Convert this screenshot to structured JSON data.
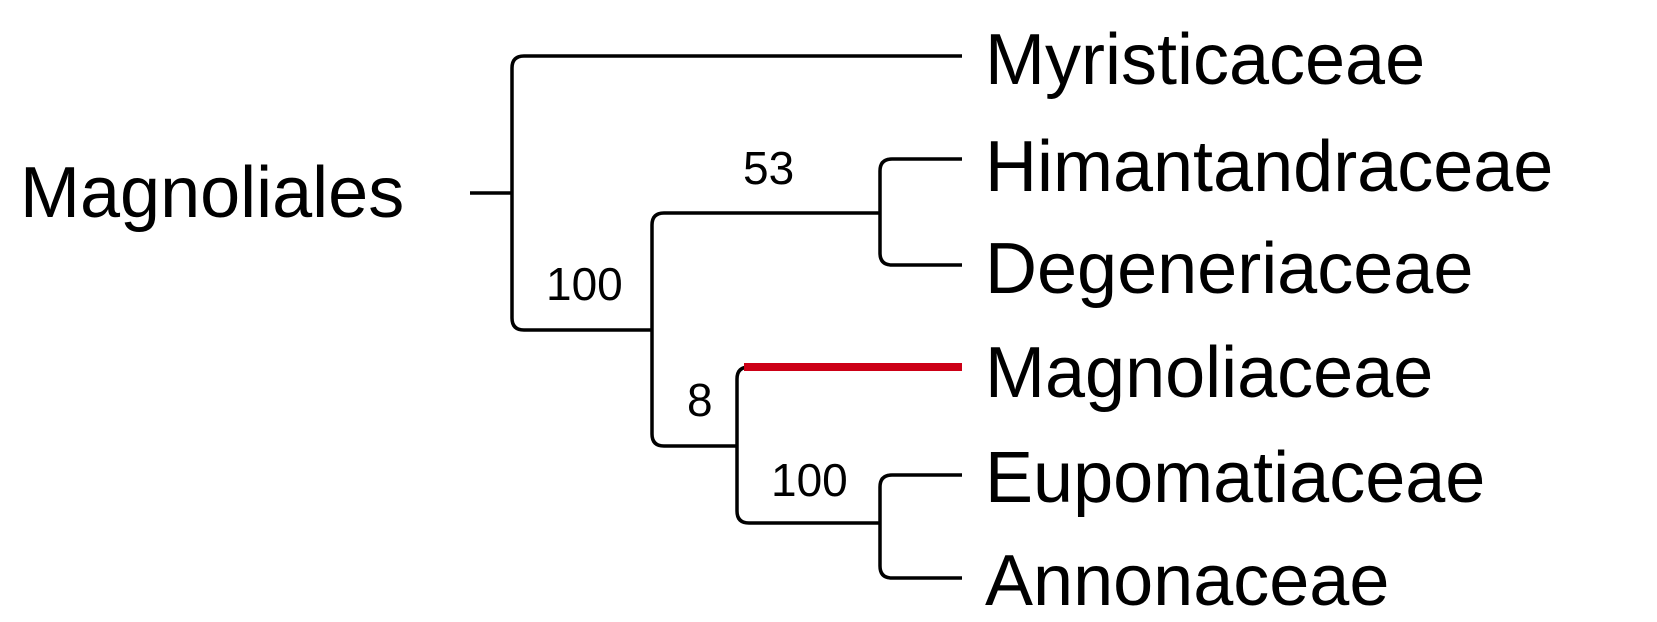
{
  "tree": {
    "root_label": "Magnoliales",
    "taxa": [
      {
        "id": "myristicaceae",
        "name": "Myristicaceae",
        "highlighted": false
      },
      {
        "id": "himantandraceae",
        "name": "Himantandraceae",
        "highlighted": false
      },
      {
        "id": "degeneriaceae",
        "name": "Degeneriaceae",
        "highlighted": false
      },
      {
        "id": "magnoliaceae",
        "name": "Magnoliaceae",
        "highlighted": true
      },
      {
        "id": "eupomatiaceae",
        "name": "Eupomatiaceae",
        "highlighted": false
      },
      {
        "id": "annonaceae",
        "name": "Annonaceae",
        "highlighted": false
      }
    ],
    "support_values": {
      "clade_all_but_myristicaceae": "100",
      "clade_himantandraceae_degeneriaceae": "53",
      "clade_magnoliaceae_eupomatiaceae_annonaceae": "8",
      "clade_eupomatiaceae_annonaceae": "100"
    }
  },
  "colors": {
    "branch": "#000000",
    "highlight": "#cc0016",
    "text": "#000000",
    "background": "#ffffff"
  }
}
